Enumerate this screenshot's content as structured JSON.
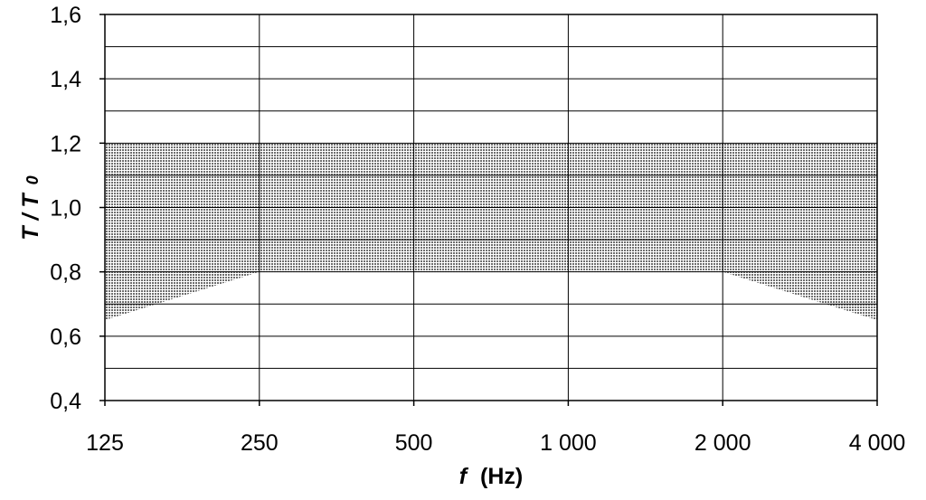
{
  "chart_data": {
    "type": "area",
    "x_scale": "log2",
    "x_ticks": [
      125,
      250,
      500,
      1000,
      2000,
      4000
    ],
    "x_tick_labels": [
      "125",
      "250",
      "500",
      "1 000",
      "2 000",
      "4 000"
    ],
    "y_ticks": [
      0.4,
      0.6,
      0.8,
      1.0,
      1.2,
      1.4,
      1.6
    ],
    "y_tick_labels": [
      "0,4",
      "0,6",
      "0,8",
      "1,0",
      "1,2",
      "1,4",
      "1,6"
    ],
    "y_minor_gridlines": [
      0.5,
      0.7,
      0.9,
      1.1,
      1.3,
      1.5
    ],
    "xlim": [
      125,
      4000
    ],
    "ylim": [
      0.4,
      1.6
    ],
    "xlabel_var": "f",
    "xlabel_unit": "(Hz)",
    "ylabel_var": "T",
    "ylabel_sep": " /",
    "ylabel_var2": "T",
    "ylabel_sub": "0",
    "grid": true,
    "band": {
      "upper": [
        {
          "x": 125,
          "y": 1.2
        },
        {
          "x": 4000,
          "y": 1.2
        }
      ],
      "lower": [
        {
          "x": 125,
          "y": 0.65
        },
        {
          "x": 250,
          "y": 0.8
        },
        {
          "x": 2000,
          "y": 0.8
        },
        {
          "x": 4000,
          "y": 0.65
        }
      ],
      "fill": "#b8b8b8"
    }
  }
}
